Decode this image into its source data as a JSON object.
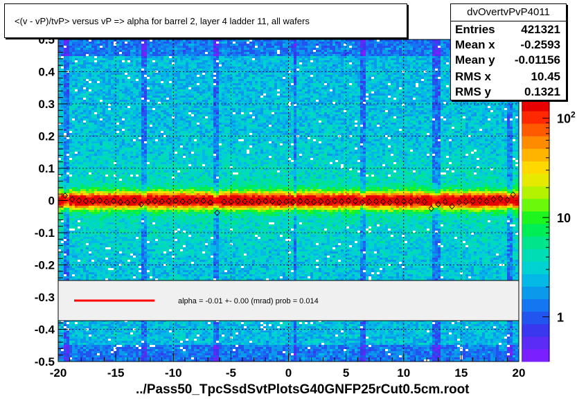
{
  "title": "<(v - vP)/tvP> versus   vP => alpha for barrel 2, layer 4 ladder 11, all wafers",
  "stats": {
    "name": "dvOvertvPvP4011",
    "rows": [
      {
        "label": "Entries",
        "value": "421321"
      },
      {
        "label": "Mean x",
        "value": "-0.2593"
      },
      {
        "label": "Mean y",
        "value": "-0.01156"
      },
      {
        "label": "RMS x",
        "value": "10.45"
      },
      {
        "label": "RMS y",
        "value": "0.1321"
      }
    ]
  },
  "fit_text": "alpha =   -0.01 +-  0.00 (mrad) prob = 0.014",
  "footer": "../Pass50_TpcSsdSvtPlotsG40GNFP25rCut0.5cm.root",
  "colors": {
    "fit_line": "#ff0000",
    "axis": "#000000",
    "grid": "#000000",
    "legend_bg": "#f0f0f0"
  },
  "chart_data": {
    "type": "heatmap",
    "title": "<(v - vP)/tvP> versus   vP => alpha for barrel 2, layer 4 ladder 11, all wafers",
    "xlabel": "",
    "ylabel": "",
    "xlim": [
      -20,
      20
    ],
    "ylim": [
      -0.5,
      0.5
    ],
    "x_ticks": [
      "-20",
      "-15",
      "-10",
      "-5",
      "0",
      "5",
      "10",
      "15",
      "20"
    ],
    "y_ticks": [
      "-0.5",
      "-0.4",
      "-0.3",
      "-0.2",
      "-0.1",
      "0",
      "0.1",
      "0.2",
      "0.3",
      "0.4",
      "0.5"
    ],
    "grid": true,
    "colorbar": {
      "scale": "log",
      "ticks": [
        "1",
        "10",
        "10^2"
      ]
    },
    "gap_bands_x": [
      [
        -19.5,
        -19.0
      ],
      [
        -12.9,
        -12.4
      ],
      [
        -6.5,
        -6.0
      ],
      [
        0.5,
        0.8
      ],
      [
        6.2,
        6.7
      ],
      [
        12.6,
        13.1
      ],
      [
        18.9,
        19.5
      ]
    ],
    "profile": {
      "x": [
        -19.4,
        -18.8,
        -18.2,
        -17.6,
        -17.0,
        -16.4,
        -15.8,
        -15.2,
        -14.6,
        -14.0,
        -13.4,
        -12.8,
        -12.2,
        -11.6,
        -11.0,
        -10.4,
        -9.8,
        -9.2,
        -8.6,
        -8.0,
        -7.4,
        -6.8,
        -6.2,
        -5.6,
        -5.0,
        -4.4,
        -3.8,
        -3.2,
        -2.6,
        -2.0,
        -1.4,
        -0.8,
        -0.2,
        0.4,
        1.0,
        1.6,
        2.2,
        2.8,
        3.4,
        4.0,
        4.6,
        5.2,
        5.8,
        6.4,
        7.0,
        7.6,
        8.2,
        8.8,
        9.4,
        10.0,
        10.6,
        11.2,
        11.8,
        12.4,
        13.0,
        13.6,
        14.2,
        14.8,
        15.4,
        16.0,
        16.6,
        17.2,
        17.8,
        18.4,
        19.0,
        19.5
      ],
      "y": [
        0.015,
        0.004,
        0.0,
        -0.002,
        -0.003,
        0.0,
        -0.004,
        -0.002,
        -0.005,
        -0.006,
        0.0,
        -0.012,
        -0.004,
        -0.002,
        -0.003,
        -0.002,
        -0.001,
        -0.003,
        -0.004,
        0.0,
        -0.001,
        -0.006,
        -0.038,
        -0.004,
        -0.004,
        -0.002,
        -0.003,
        -0.004,
        -0.003,
        -0.002,
        -0.003,
        -0.006,
        -0.004,
        -0.005,
        -0.002,
        -0.003,
        -0.005,
        -0.003,
        -0.004,
        -0.002,
        -0.003,
        -0.001,
        -0.002,
        -0.006,
        -0.004,
        -0.003,
        -0.004,
        -0.006,
        -0.002,
        -0.003,
        -0.004,
        -0.001,
        -0.004,
        -0.025,
        -0.012,
        -0.004,
        -0.018,
        -0.006,
        -0.004,
        -0.002,
        0.0,
        -0.003,
        0.004,
        0.006,
        0.002,
        0.018
      ]
    },
    "fit": {
      "type": "line",
      "slope_mrad": -0.01,
      "slope_err": 0.0,
      "intercept": 0.0,
      "prob": 0.014
    }
  }
}
